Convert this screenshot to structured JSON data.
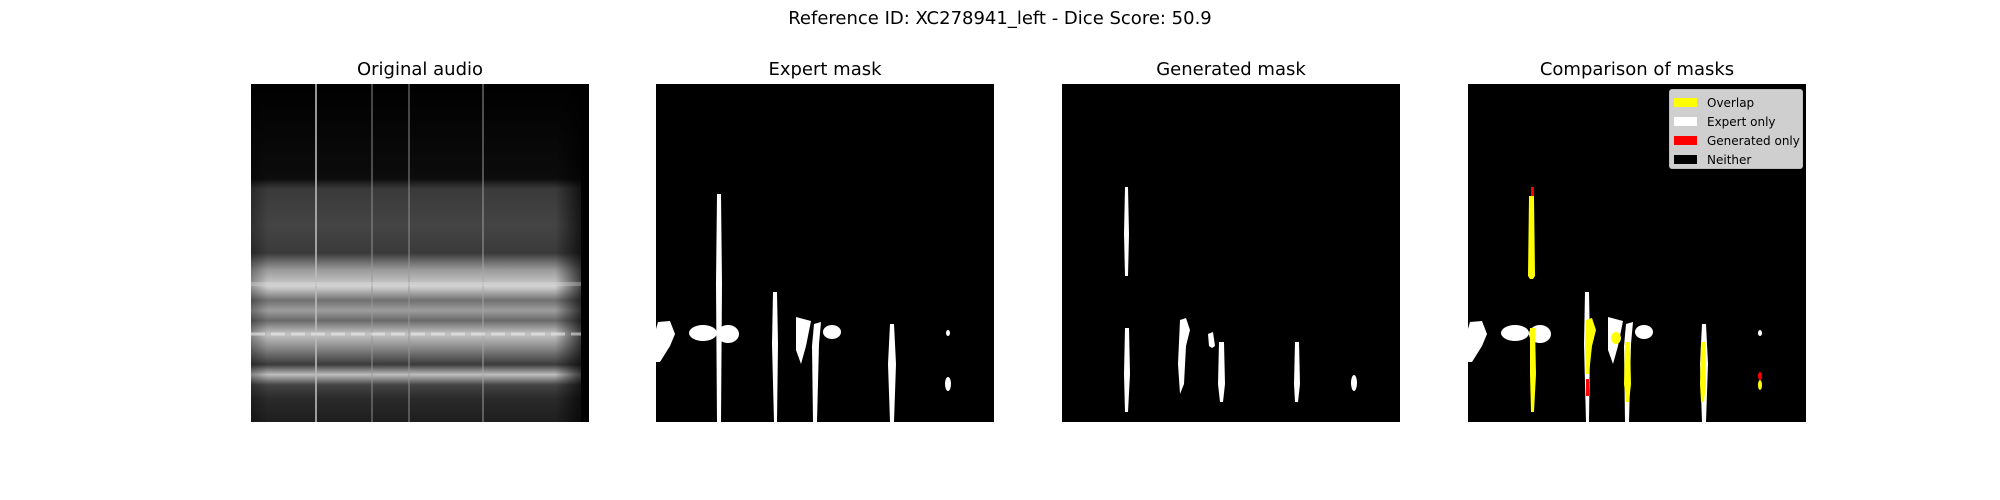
{
  "suptitle": "Reference ID: XC278941_left - Dice Score: 50.9",
  "panels": [
    {
      "title": "Original audio"
    },
    {
      "title": "Expert mask"
    },
    {
      "title": "Generated mask"
    },
    {
      "title": "Comparison of masks"
    }
  ],
  "legend": {
    "items": [
      {
        "label": "Overlap",
        "color": "#ffff00"
      },
      {
        "label": "Expert only",
        "color": "#ffffff"
      },
      {
        "label": "Generated only",
        "color": "#ff0000"
      },
      {
        "label": "Neither",
        "color": "#000000"
      }
    ]
  }
}
